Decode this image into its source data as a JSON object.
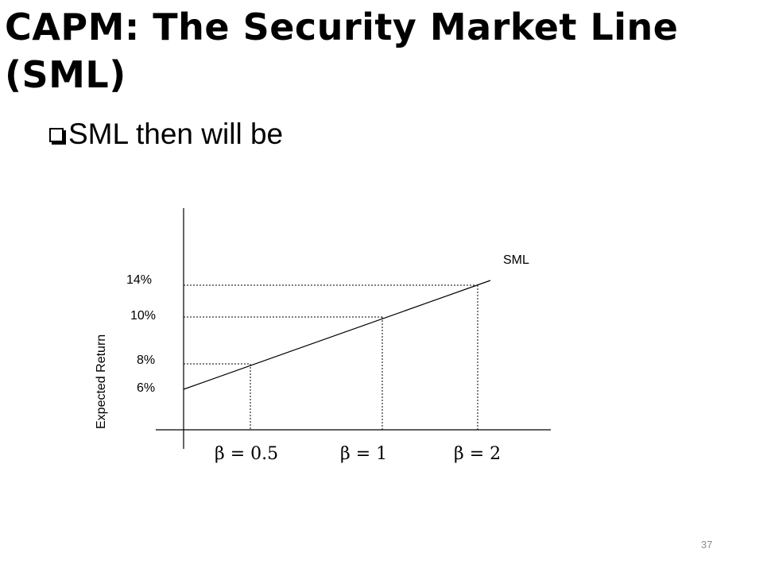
{
  "slide": {
    "title": "CAPM: The Security Market Line (SML)",
    "bullet_text": "SML then will be",
    "page_number": "37"
  },
  "diagram": {
    "y_axis_label": "Expected Return",
    "line_label": "SML",
    "y_ticks": [
      "14%",
      "10%",
      "8%",
      "6%"
    ],
    "x_ticks": [
      "β = 0.5",
      "β = 1",
      "β = 2"
    ],
    "points": [
      {
        "beta": 0.5,
        "return": "8%"
      },
      {
        "beta": 1,
        "return": "10%"
      },
      {
        "beta": 2,
        "return": "14%"
      }
    ],
    "intercept": "6%"
  }
}
